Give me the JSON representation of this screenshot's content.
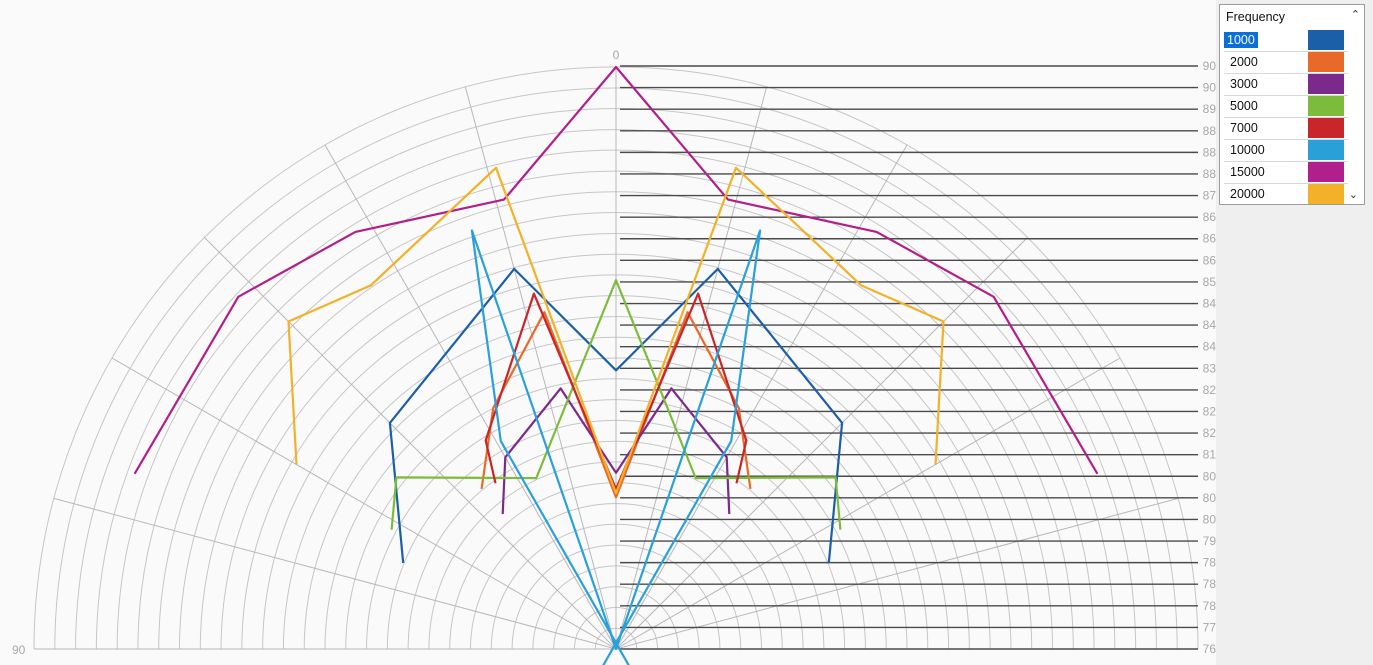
{
  "chart_data": {
    "type": "polar",
    "angle_labels": [
      "0",
      "90"
    ],
    "radial_labels": [
      "90",
      "90",
      "89",
      "88",
      "88",
      "88",
      "87",
      "86",
      "86",
      "86",
      "85",
      "84",
      "84",
      "84",
      "83",
      "82",
      "82",
      "82",
      "81",
      "80",
      "80",
      "80",
      "79",
      "78",
      "78",
      "78",
      "77",
      "76"
    ],
    "grid": true,
    "legend_placement": "top-right",
    "legend_title": "Frequency",
    "series": [
      {
        "name": "1000",
        "color": "#1a5fa7",
        "angles": [
          -68,
          -45,
          -15,
          0,
          15,
          45,
          68
        ],
        "values": [
          81.6,
          83.8,
          85.6,
          82.8,
          85.6,
          83.8,
          81.6
        ]
      },
      {
        "name": "2000",
        "color": "#e86a29",
        "angles": [
          -40,
          -27,
          -12,
          0,
          12,
          27,
          40
        ],
        "values": [
          81.1,
          82.6,
          84.4,
          79.7,
          84.4,
          82.6,
          81.1
        ]
      },
      {
        "name": "3000",
        "color": "#7b2a8b",
        "angles": [
          -40,
          -30,
          -12,
          0,
          12,
          30,
          40
        ],
        "values": [
          80.3,
          81.4,
          82.5,
          80.3,
          82.5,
          81.4,
          80.3
        ]
      },
      {
        "name": "5000",
        "color": "#7dbb3c",
        "angles": [
          -62,
          -52,
          -25,
          0,
          25,
          52,
          62
        ],
        "values": [
          82.2,
          82.8,
          80.6,
          85.0,
          80.6,
          82.8,
          82.2
        ]
      },
      {
        "name": "7000",
        "color": "#c8262a",
        "angles": [
          -36,
          -32,
          -13,
          0,
          13,
          32,
          36
        ],
        "values": [
          81.0,
          82.0,
          84.9,
          79.9,
          84.9,
          82.0,
          81.0
        ]
      },
      {
        "name": "10000",
        "color": "#2aa0d8",
        "angles": [
          -35,
          -29,
          -19,
          0,
          19,
          29,
          35
        ],
        "values": [
          75.2,
          81.8,
          86.8,
          76.0,
          86.8,
          81.8,
          75.2
        ]
      },
      {
        "name": "15000",
        "color": "#b01f8c",
        "angles": [
          -70,
          -47,
          -32,
          -14,
          0,
          14,
          32,
          47,
          70
        ],
        "values": [
          88.5,
          88.6,
          88.0,
          87.3,
          90.2,
          87.3,
          88.0,
          88.6,
          88.5
        ]
      },
      {
        "name": "20000",
        "color": "#f2b128",
        "angles": [
          -60,
          -45,
          -34,
          -14,
          0,
          14,
          34,
          45,
          60
        ],
        "values": [
          85.0,
          87.3,
          86.7,
          88.1,
          79.8,
          88.1,
          86.7,
          87.3,
          85.0
        ]
      }
    ]
  },
  "legend": {
    "title": "Frequency",
    "items": [
      {
        "label": "1000",
        "color": "#1a5fa7",
        "selected": true
      },
      {
        "label": "2000",
        "color": "#e86a29"
      },
      {
        "label": "3000",
        "color": "#7b2a8b"
      },
      {
        "label": "5000",
        "color": "#7dbb3c"
      },
      {
        "label": "7000",
        "color": "#c8262a"
      },
      {
        "label": "10000",
        "color": "#2aa0d8"
      },
      {
        "label": "15000",
        "color": "#b01f8c"
      },
      {
        "label": "20000",
        "color": "#f2b128"
      }
    ]
  },
  "icons": {
    "scroll_up": "chevron-up-icon",
    "scroll_down": "chevron-down-icon"
  }
}
